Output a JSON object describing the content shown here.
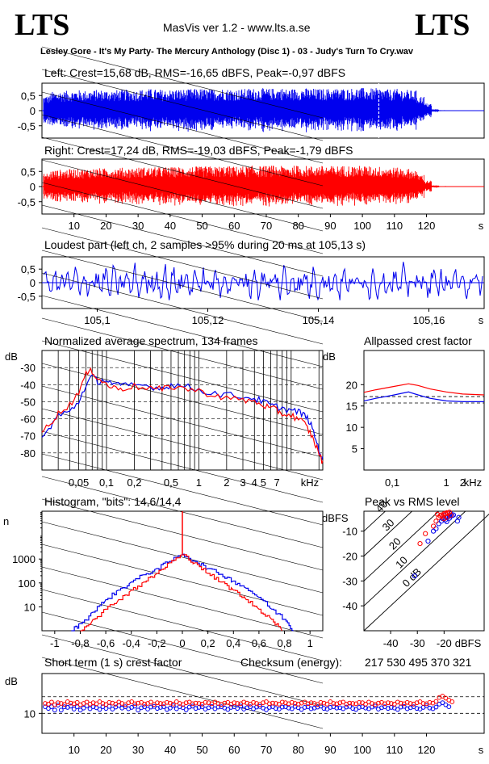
{
  "header": {
    "logo_left": "LTS",
    "logo_right": "LTS",
    "app_title": "MasVis ver 1.2 - www.lts.a.se",
    "track": "Lesley Gore - It's My Party- The Mercury Anthology (Disc 1) - 03 - Judy's Turn To Cry.wav"
  },
  "colors": {
    "left": "#0000ee",
    "right": "#ff0000",
    "axis": "#000000",
    "grid": "#000000"
  },
  "chart_data": [
    {
      "id": "left_wave",
      "type": "area",
      "title": "Left: Crest=15,68 dB, RMS=-16,65 dBFS, Peak=-0,97 dBFS",
      "y_ticks": [
        "0,5",
        "0",
        "-0,5"
      ],
      "ylim": [
        -1,
        1
      ],
      "xlim": [
        0,
        138
      ],
      "series": [
        {
          "name": "Left",
          "envelope": [
            0.62,
            0.78,
            0.8,
            0.82,
            0.85,
            0.83,
            0.84,
            0.86,
            0.85,
            0.84,
            0.86,
            0.87,
            0.85,
            0.88,
            0.9,
            0.88,
            0.86,
            0.87,
            0.89,
            0.88,
            0.9,
            0.91,
            0.89,
            0.9,
            0.92,
            0.9,
            0.88,
            0.9,
            0.92,
            0.93,
            0.91,
            0.92,
            0.94,
            0.9,
            0.91,
            0.93,
            0.92,
            0.9,
            0.91,
            0.93,
            0.92,
            0.91,
            0.93,
            0.94,
            0.92,
            0.93,
            0.9,
            0.88,
            0.9,
            0.86,
            0.84,
            0.6,
            0.3,
            0.06,
            0.02,
            0.01,
            0.01,
            0.01,
            0.01,
            0.01
          ]
        }
      ],
      "marker_x": 105.13
    },
    {
      "id": "right_wave",
      "type": "area",
      "title": "Right: Crest=17,24 dB, RMS=-19,03 dBFS, Peak=-1,79 dBFS",
      "y_ticks": [
        "0,5",
        "0",
        "-0,5"
      ],
      "x_ticks": [
        "10",
        "20",
        "30",
        "40",
        "50",
        "60",
        "70",
        "80",
        "90",
        "100",
        "110",
        "120",
        "s"
      ],
      "x_tick_values": [
        10,
        20,
        30,
        40,
        50,
        60,
        70,
        80,
        90,
        100,
        110,
        120
      ],
      "ylim": [
        -1,
        1
      ],
      "xlim": [
        0,
        138
      ],
      "series": [
        {
          "name": "Right",
          "envelope": [
            0.55,
            0.68,
            0.7,
            0.72,
            0.74,
            0.73,
            0.75,
            0.76,
            0.75,
            0.77,
            0.78,
            0.76,
            0.78,
            0.8,
            0.79,
            0.8,
            0.81,
            0.8,
            0.82,
            0.81,
            0.83,
            0.82,
            0.84,
            0.83,
            0.85,
            0.84,
            0.83,
            0.85,
            0.86,
            0.85,
            0.86,
            0.87,
            0.85,
            0.86,
            0.87,
            0.86,
            0.85,
            0.87,
            0.86,
            0.85,
            0.86,
            0.87,
            0.85,
            0.86,
            0.84,
            0.83,
            0.82,
            0.8,
            0.78,
            0.74,
            0.7,
            0.5,
            0.25,
            0.05,
            0.02,
            0.01,
            0.01,
            0.01,
            0.01,
            0.01
          ]
        }
      ]
    },
    {
      "id": "loudest",
      "type": "line",
      "title": "Loudest part (left  ch, 2 samples >95% during 20 ms at 105,13 s)",
      "y_ticks": [
        "0,5",
        "0",
        "-0,5"
      ],
      "x_ticks": [
        "105,1",
        "105,12",
        "105,14",
        "105,16",
        "s"
      ],
      "x_tick_values": [
        105.1,
        105.12,
        105.14,
        105.16
      ],
      "xlim": [
        105.09,
        105.17
      ],
      "ylim": [
        -1,
        1
      ]
    },
    {
      "id": "spectrum",
      "type": "line",
      "title": "Normalized average spectrum, 134 frames",
      "ylabel": "dB",
      "xlabel": "kHz",
      "y_ticks": [
        "-30",
        "-40",
        "-50",
        "-60",
        "-70",
        "-80"
      ],
      "y_tick_values": [
        -30,
        -40,
        -50,
        -60,
        -70,
        -80
      ],
      "x_ticks": [
        "0,05",
        "0,1",
        "0,2",
        "0,5",
        "1",
        "2",
        "3",
        "4",
        "5",
        "7"
      ],
      "x_tick_values": [
        0.05,
        0.1,
        0.2,
        0.5,
        1,
        2,
        3,
        4,
        5,
        7
      ],
      "xlim_khz": [
        0.02,
        22
      ],
      "ylim": [
        -90,
        -20
      ],
      "series": [
        {
          "name": "Left",
          "x": [
            0.02,
            0.025,
            0.03,
            0.04,
            0.05,
            0.06,
            0.07,
            0.08,
            0.1,
            0.12,
            0.15,
            0.2,
            0.3,
            0.4,
            0.5,
            0.7,
            1,
            1.5,
            2,
            3,
            4,
            5,
            6,
            7,
            8,
            10,
            12,
            14,
            16,
            18,
            20,
            22
          ],
          "y": [
            -72,
            -64,
            -58,
            -56,
            -50,
            -40,
            -35,
            -38,
            -37,
            -40,
            -41,
            -40,
            -41,
            -42,
            -40,
            -41,
            -43,
            -45,
            -46,
            -47,
            -48,
            -50,
            -52,
            -53,
            -54,
            -55,
            -56,
            -58,
            -62,
            -70,
            -78,
            -84
          ]
        },
        {
          "name": "Right",
          "x": [
            0.02,
            0.025,
            0.03,
            0.04,
            0.05,
            0.06,
            0.07,
            0.08,
            0.1,
            0.12,
            0.15,
            0.2,
            0.3,
            0.4,
            0.5,
            0.7,
            1,
            1.5,
            2,
            3,
            4,
            5,
            6,
            7,
            8,
            10,
            12,
            14,
            16,
            18,
            20,
            22
          ],
          "y": [
            -68,
            -62,
            -57,
            -52,
            -44,
            -34,
            -32,
            -36,
            -40,
            -42,
            -42,
            -41,
            -42,
            -43,
            -41,
            -42,
            -44,
            -46,
            -48,
            -49,
            -50,
            -52,
            -54,
            -55,
            -57,
            -58,
            -60,
            -63,
            -68,
            -74,
            -80,
            -86
          ]
        }
      ]
    },
    {
      "id": "allpass",
      "type": "line",
      "title": "Allpassed crest factor",
      "ylabel": "dB",
      "xlabel": "kHz",
      "y_ticks": [
        "20",
        "15",
        "10",
        "5"
      ],
      "y_tick_values": [
        20,
        15,
        10,
        5
      ],
      "x_ticks": [
        "0,1",
        "1",
        "2",
        "kHz"
      ],
      "x_tick_values": [
        0.1,
        1,
        2
      ],
      "ylim": [
        0,
        28
      ],
      "xlim_khz": [
        0.03,
        5
      ],
      "series": [
        {
          "name": "Left",
          "x": [
            0.03,
            0.05,
            0.1,
            0.2,
            0.3,
            0.5,
            1,
            2,
            5
          ],
          "y": [
            16.2,
            16.8,
            17.5,
            18.3,
            17.6,
            16.8,
            16.2,
            16.0,
            16.0
          ]
        },
        {
          "name": "Right",
          "x": [
            0.03,
            0.05,
            0.1,
            0.2,
            0.3,
            0.5,
            1,
            2,
            5
          ],
          "y": [
            18.2,
            18.8,
            19.5,
            20.2,
            19.8,
            19.0,
            18.3,
            17.8,
            17.6
          ]
        }
      ],
      "dashed_levels": [
        {
          "series": "Left",
          "y": 15.7
        },
        {
          "series": "Right",
          "y": 17.2
        }
      ]
    },
    {
      "id": "histogram",
      "type": "line",
      "title": "Histogram, \"bits\": 14,6/14,4",
      "ylabel": "n",
      "y_ticks": [
        "1000",
        "100",
        "10"
      ],
      "y_tick_values": [
        1000,
        100,
        10
      ],
      "x_ticks": [
        "-1",
        "-0,8",
        "-0,6",
        "-0,4",
        "-0,2",
        "0",
        "0,2",
        "0,4",
        "0,6",
        "0,8",
        "1"
      ],
      "x_tick_values": [
        -1,
        -0.8,
        -0.6,
        -0.4,
        -0.2,
        0,
        0.2,
        0.4,
        0.6,
        0.8,
        1
      ],
      "xlim": [
        -1.1,
        1.1
      ],
      "ylim_log": [
        1,
        100000
      ],
      "series": [
        {
          "name": "Left",
          "x": [
            -0.87,
            -0.8,
            -0.7,
            -0.6,
            -0.5,
            -0.4,
            -0.3,
            -0.2,
            -0.1,
            0,
            0.1,
            0.2,
            0.3,
            0.4,
            0.5,
            0.6,
            0.7,
            0.8,
            0.87
          ],
          "y": [
            1,
            2,
            6,
            20,
            50,
            110,
            220,
            400,
            800,
            1600,
            800,
            400,
            230,
            120,
            60,
            25,
            8,
            3,
            1
          ]
        },
        {
          "name": "Right",
          "x": [
            -0.8,
            -0.7,
            -0.6,
            -0.5,
            -0.4,
            -0.3,
            -0.2,
            -0.1,
            0,
            0.1,
            0.2,
            0.3,
            0.4,
            0.5,
            0.6,
            0.7,
            0.78
          ],
          "y": [
            1,
            3,
            8,
            20,
            50,
            110,
            250,
            700,
            1500,
            700,
            250,
            110,
            50,
            20,
            8,
            3,
            1
          ]
        }
      ],
      "peak_spike": 100000
    },
    {
      "id": "peak_vs_rms",
      "type": "scatter",
      "title": "Peak vs RMS level",
      "ylabel": "dBFS",
      "xlabel": "dBFS",
      "y_ticks": [
        "-10",
        "-20",
        "-30",
        "-40"
      ],
      "y_tick_values": [
        -10,
        -20,
        -30,
        -40
      ],
      "x_ticks": [
        "-40",
        "-30",
        "-20",
        "dBFS"
      ],
      "x_tick_values": [
        -40,
        -30,
        -20
      ],
      "xlim": [
        -50,
        -5
      ],
      "ylim": [
        -50,
        -2
      ],
      "diagonal_labels": [
        "40",
        "30",
        "20",
        "10",
        "0 dB"
      ],
      "diagonal_offsets": [
        40,
        30,
        20,
        10,
        0
      ],
      "series": [
        {
          "name": "Left",
          "x": [
            -20,
            -19,
            -18,
            -21,
            -19.5,
            -18.5,
            -17,
            -22,
            -20.5,
            -16.5,
            -18,
            -19,
            -23,
            -24,
            -26,
            -31,
            -20,
            -17.5,
            -15,
            -14.5
          ],
          "y": [
            -5,
            -4.5,
            -4,
            -6,
            -5.5,
            -4.2,
            -3.8,
            -7,
            -5,
            -3.5,
            -4.8,
            -6.2,
            -9,
            -10,
            -14,
            -28,
            -3.6,
            -3,
            -6,
            -4.5
          ]
        },
        {
          "name": "Right",
          "x": [
            -21,
            -20,
            -19,
            -22,
            -20.5,
            -19.5,
            -18,
            -23,
            -21.5,
            -18.5,
            -20,
            -24,
            -27,
            -29,
            -22.5,
            -19,
            -17.5
          ],
          "y": [
            -3.5,
            -3,
            -2.6,
            -4.5,
            -4,
            -3,
            -2.4,
            -6,
            -3.8,
            -2.8,
            -5,
            -8,
            -11,
            -15,
            -3.2,
            -4.5,
            -3.6
          ]
        }
      ]
    },
    {
      "id": "short_term_crest",
      "type": "scatter",
      "title": "Short term (1 s) crest factor",
      "ylabel": "dB",
      "y_ticks": [
        "10"
      ],
      "y_tick_values": [
        10
      ],
      "x_ticks": [
        "10",
        "20",
        "30",
        "40",
        "50",
        "60",
        "70",
        "80",
        "90",
        "100",
        "110",
        "120",
        "s"
      ],
      "x_tick_values": [
        10,
        20,
        30,
        40,
        50,
        60,
        70,
        80,
        90,
        100,
        110,
        120
      ],
      "xlim": [
        0,
        138
      ],
      "ylim": [
        4,
        22
      ],
      "dashed_levels": [
        10,
        15
      ],
      "series": [
        {
          "name": "Left",
          "values": [
            12,
            11.5,
            12,
            11,
            12.5,
            11,
            12,
            11.8,
            12.2,
            11.3,
            12,
            11,
            11.6,
            12.3,
            11.4,
            12,
            11.7,
            11.2,
            12,
            11.5,
            12.1,
            11.3,
            11.9,
            12.4,
            11.6,
            12,
            11.4,
            11.8,
            12.2,
            11,
            11.7,
            12,
            11.3,
            11.9,
            12.1,
            11.5,
            11.8,
            12,
            11.2,
            11.6,
            12.3,
            11.4,
            12,
            11.7,
            11.1,
            11.9,
            12.2,
            11.5,
            11.8,
            12,
            11.3,
            11.7,
            12.1,
            11.4,
            11.9,
            12,
            11.6,
            11.2,
            11.8,
            12,
            11.5,
            12.2,
            11.3,
            11.7,
            12,
            11.4,
            11.9,
            12.1,
            11.6,
            11.1,
            11.8,
            12,
            11.5,
            11.3,
            11.9,
            12,
            11.6,
            11.4,
            12.1,
            11.7,
            11.2,
            11.8,
            12,
            11.4,
            11.6,
            11.9,
            12.2,
            11.5,
            11.3,
            11.8,
            12,
            11.6,
            11.7,
            11.4,
            11.9,
            12.1,
            11.5,
            11.2,
            11.8,
            12,
            11.6,
            11.4,
            11.9,
            12.2,
            11.3,
            11.7,
            12,
            11.5,
            11.8,
            11.6,
            11.2,
            11.9,
            12.1,
            11.4,
            11.7,
            12,
            11.5,
            11.3,
            11.8,
            12.3,
            11.6,
            11.4,
            11.9,
            12.8,
            13.2,
            12.6,
            12
          ]
        },
        {
          "name": "Right",
          "values": [
            13,
            12.8,
            13.4,
            12.6,
            13.2,
            13,
            12.7,
            13.5,
            13.1,
            12.9,
            13.3,
            12.6,
            13,
            13.4,
            12.8,
            13.2,
            12.9,
            13.5,
            13,
            12.7,
            13.3,
            13.1,
            12.8,
            13.4,
            13,
            12.6,
            13.2,
            13.5,
            12.9,
            13.1,
            13.3,
            12.8,
            13,
            13.4,
            12.7,
            13.2,
            13,
            12.9,
            13.3,
            13.1,
            12.8,
            13.5,
            13,
            12.7,
            13.2,
            13.4,
            12.9,
            13.1,
            13,
            12.8,
            13.3,
            13.2,
            12.9,
            13.4,
            13,
            12.7,
            13.1,
            13.3,
            12.8,
            13.2,
            13,
            12.9,
            13.4,
            13.1,
            12.8,
            13.3,
            13,
            12.7,
            13.2,
            13.5,
            12.9,
            13.1,
            13,
            12.8,
            13.4,
            13.2,
            12.9,
            13.3,
            13,
            12.8,
            13.1,
            13.4,
            12.9,
            13.2,
            13,
            12.7,
            13.3,
            13.1,
            12.8,
            13.5,
            13,
            12.9,
            13.2,
            13.4,
            12.8,
            13.1,
            13,
            12.9,
            13.3,
            13.2,
            12.8,
            13.4,
            13,
            12.7,
            13.1,
            13.3,
            12.9,
            13.2,
            13,
            12.8,
            13.4,
            13.1,
            12.9,
            13.3,
            13,
            12.8,
            13.2,
            13.5,
            13,
            12.9,
            13.3,
            13.1,
            13.6,
            14.8,
            15.2,
            14.6,
            14,
            13.5
          ]
        }
      ],
      "checksum_label": "Checksum (energy):",
      "checksum_value": "217 530 495 370 321"
    }
  ]
}
